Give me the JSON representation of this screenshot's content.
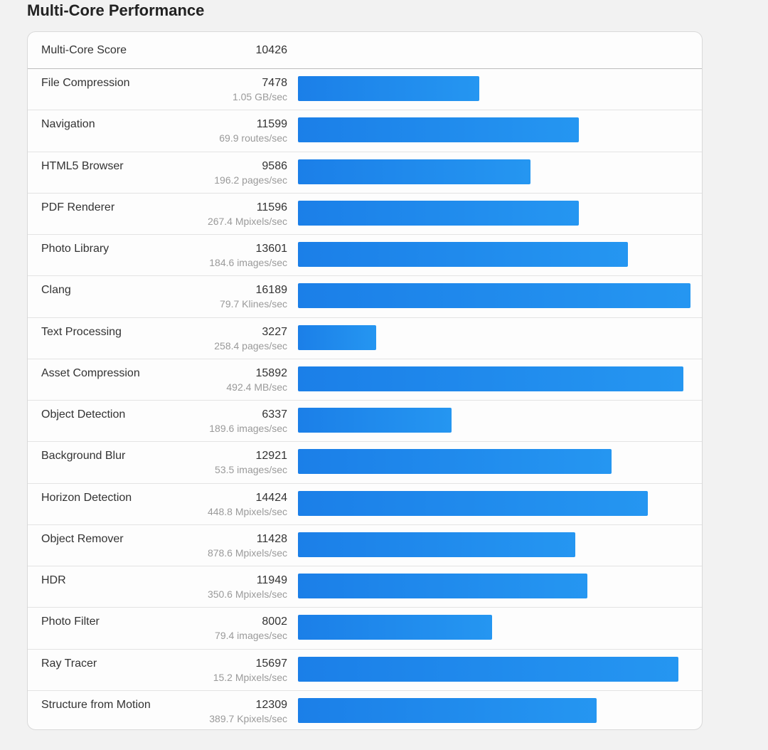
{
  "page_title": "Multi-Core Performance",
  "summary": {
    "label": "Multi-Core Score",
    "value": "10426"
  },
  "colors": {
    "bar_start": "#1b7fe8",
    "bar_end": "#2596f1"
  },
  "max_score": 16189,
  "benchmarks": [
    {
      "name": "File Compression",
      "score": 7478,
      "rate": "1.05 GB/sec"
    },
    {
      "name": "Navigation",
      "score": 11599,
      "rate": "69.9 routes/sec"
    },
    {
      "name": "HTML5 Browser",
      "score": 9586,
      "rate": "196.2 pages/sec"
    },
    {
      "name": "PDF Renderer",
      "score": 11596,
      "rate": "267.4 Mpixels/sec"
    },
    {
      "name": "Photo Library",
      "score": 13601,
      "rate": "184.6 images/sec"
    },
    {
      "name": "Clang",
      "score": 16189,
      "rate": "79.7 Klines/sec"
    },
    {
      "name": "Text Processing",
      "score": 3227,
      "rate": "258.4 pages/sec"
    },
    {
      "name": "Asset Compression",
      "score": 15892,
      "rate": "492.4 MB/sec"
    },
    {
      "name": "Object Detection",
      "score": 6337,
      "rate": "189.6 images/sec"
    },
    {
      "name": "Background Blur",
      "score": 12921,
      "rate": "53.5 images/sec"
    },
    {
      "name": "Horizon Detection",
      "score": 14424,
      "rate": "448.8 Mpixels/sec"
    },
    {
      "name": "Object Remover",
      "score": 11428,
      "rate": "878.6 Mpixels/sec"
    },
    {
      "name": "HDR",
      "score": 11949,
      "rate": "350.6 Mpixels/sec"
    },
    {
      "name": "Photo Filter",
      "score": 8002,
      "rate": "79.4 images/sec"
    },
    {
      "name": "Ray Tracer",
      "score": 15697,
      "rate": "15.2 Mpixels/sec"
    },
    {
      "name": "Structure from Motion",
      "score": 12309,
      "rate": "389.7 Kpixels/sec"
    }
  ]
}
